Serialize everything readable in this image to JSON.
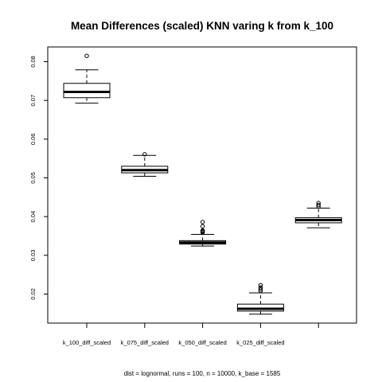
{
  "chart_data": {
    "type": "boxplot",
    "title": "Mean Differences (scaled) KNN varing k from k_100",
    "subtitle": "dist = lognormal, runs = 100, n = 10000, k_base = 1585",
    "xlabel": "",
    "ylabel": "",
    "ylim": [
      0.0125,
      0.0838
    ],
    "yticks": [
      0.02,
      0.03,
      0.04,
      0.05,
      0.06,
      0.07,
      0.08
    ],
    "ytick_labels": [
      "0.02",
      "0.03",
      "0.04",
      "0.05",
      "0.06",
      "0.07",
      "0.08"
    ],
    "categories": [
      "k_100_diff_scaled",
      "k_075_diff_scaled",
      "k_050_diff_scaled",
      "k_025_diff_scaled",
      ""
    ],
    "boxes": [
      {
        "min": 0.0693,
        "q1": 0.0707,
        "median": 0.0722,
        "q3": 0.0744,
        "max": 0.0779,
        "outliers": [
          0.0815
        ]
      },
      {
        "min": 0.0504,
        "q1": 0.0513,
        "median": 0.052,
        "q3": 0.053,
        "max": 0.0558,
        "outliers": [
          0.0561
        ]
      },
      {
        "min": 0.0324,
        "q1": 0.0329,
        "median": 0.0333,
        "q3": 0.0338,
        "max": 0.0354,
        "outliers": [
          0.0359,
          0.036,
          0.0362,
          0.0364,
          0.0375,
          0.0386
        ]
      },
      {
        "min": 0.0148,
        "q1": 0.0156,
        "median": 0.0162,
        "q3": 0.0174,
        "max": 0.0203,
        "outliers": [
          0.0208,
          0.0212,
          0.0217,
          0.0223
        ]
      },
      {
        "min": 0.0371,
        "q1": 0.0384,
        "median": 0.0391,
        "q3": 0.0397,
        "max": 0.0422,
        "outliers": [
          0.0426,
          0.043,
          0.0435
        ]
      }
    ],
    "grid": false,
    "legend": "none"
  }
}
